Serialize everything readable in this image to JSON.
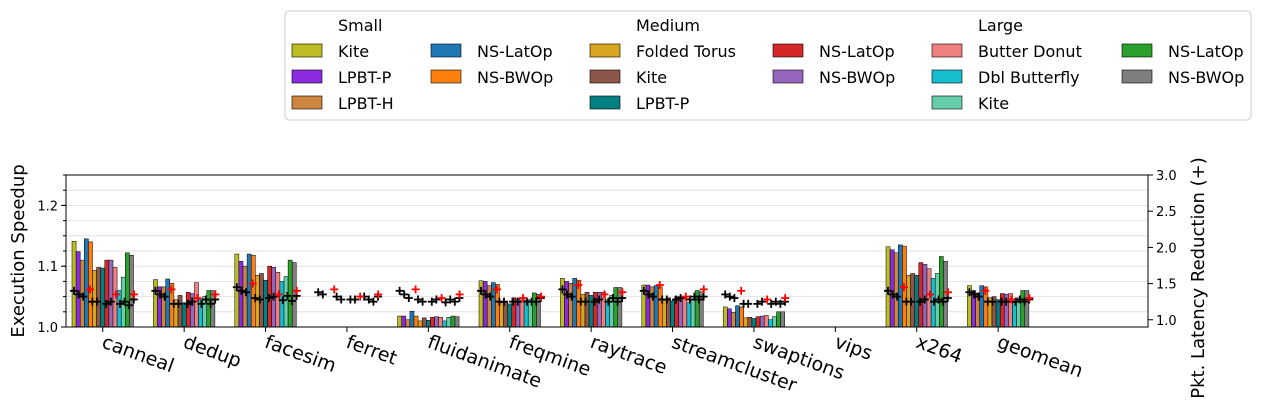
{
  "chart_data": {
    "type": "bar",
    "categories": [
      "canneal",
      "dedup",
      "facesim",
      "ferret",
      "fluidanimate",
      "freqmine",
      "raytrace",
      "streamcluster",
      "swaptions",
      "vips",
      "x264",
      "geomean"
    ],
    "ylabel": "Execution Speedup",
    "y2label": "Pkt. Latency Reduction (+)",
    "ylim": [
      1.0,
      1.25
    ],
    "y_ticks": [
      "1.0",
      "1.1",
      "1.2"
    ],
    "y2lim": [
      0.9,
      3.0
    ],
    "y2_ticks": [
      "1.0",
      "1.5",
      "2.0",
      "2.5",
      "3.0"
    ],
    "grid": true,
    "legend": {
      "placement": "top",
      "groups": [
        {
          "title": "Small",
          "entries": [
            {
              "name": "Kite",
              "color": "#bcbd22"
            },
            {
              "name": "LPBT-P",
              "color": "#8a2be2"
            },
            {
              "name": "LPBT-H",
              "color": "#cd853f"
            },
            {
              "name": "NS-LatOp",
              "color": "#1f77b4"
            },
            {
              "name": "NS-BWOp",
              "color": "#ff7f0e"
            }
          ]
        },
        {
          "title": "Medium",
          "entries": [
            {
              "name": "Folded Torus",
              "color": "#daa520"
            },
            {
              "name": "Kite",
              "color": "#8c564b"
            },
            {
              "name": "LPBT-P",
              "color": "#008080"
            },
            {
              "name": "NS-LatOp",
              "color": "#d62728"
            },
            {
              "name": "NS-BWOp",
              "color": "#9467bd"
            }
          ]
        },
        {
          "title": "Large",
          "entries": [
            {
              "name": "Butter Donut",
              "color": "#f08080"
            },
            {
              "name": "Dbl Butterfly",
              "color": "#17becf"
            },
            {
              "name": "Kite",
              "color": "#66cdaa"
            },
            {
              "name": "NS-LatOp",
              "color": "#2ca02c"
            },
            {
              "name": "NS-BWOp",
              "color": "#7f7f7f"
            }
          ]
        }
      ]
    },
    "series": [
      {
        "name": "Kite",
        "group": "Small",
        "color": "#bcbd22",
        "values": [
          1.141,
          1.078,
          1.12,
          null,
          1.018,
          1.076,
          1.08,
          1.069,
          1.033,
          null,
          1.132,
          1.068
        ]
      },
      {
        "name": "LPBT-P",
        "group": "Small",
        "color": "#8a2be2",
        "values": [
          1.124,
          1.066,
          1.108,
          null,
          1.018,
          1.075,
          1.075,
          1.069,
          1.03,
          null,
          1.127,
          1.06
        ]
      },
      {
        "name": "LPBT-H",
        "group": "Small",
        "color": "#cd853f",
        "values": [
          1.11,
          1.066,
          1.1,
          null,
          1.012,
          1.068,
          1.072,
          1.066,
          1.024,
          null,
          1.122,
          1.056
        ]
      },
      {
        "name": "NS-LatOp",
        "group": "Small",
        "color": "#1f77b4",
        "values": [
          1.145,
          1.079,
          1.12,
          null,
          1.026,
          1.073,
          1.08,
          1.068,
          1.035,
          null,
          1.135,
          1.068
        ]
      },
      {
        "name": "NS-BWOp",
        "group": "Small",
        "color": "#ff7f0e",
        "values": [
          1.14,
          1.072,
          1.118,
          null,
          1.018,
          1.07,
          1.077,
          1.066,
          1.033,
          null,
          1.133,
          1.066
        ]
      },
      {
        "name": "Folded Torus",
        "group": "Medium",
        "color": "#daa520",
        "values": [
          1.093,
          1.045,
          1.085,
          null,
          1.01,
          1.04,
          1.054,
          1.044,
          1.015,
          null,
          1.085,
          1.048
        ]
      },
      {
        "name": "Kite",
        "group": "Medium",
        "color": "#8c564b",
        "values": [
          1.098,
          1.052,
          1.088,
          null,
          1.015,
          1.042,
          1.057,
          1.048,
          1.016,
          null,
          1.088,
          1.05
        ]
      },
      {
        "name": "LPBT-P",
        "group": "Medium",
        "color": "#008080",
        "values": [
          1.097,
          1.04,
          1.077,
          null,
          1.011,
          1.038,
          1.052,
          1.043,
          1.014,
          null,
          1.085,
          1.045
        ]
      },
      {
        "name": "NS-LatOp",
        "group": "Medium",
        "color": "#d62728",
        "values": [
          1.11,
          1.057,
          1.1,
          null,
          1.016,
          1.048,
          1.057,
          1.05,
          1.017,
          null,
          1.106,
          1.055
        ]
      },
      {
        "name": "NS-BWOp",
        "group": "Medium",
        "color": "#9467bd",
        "values": [
          1.11,
          1.055,
          1.098,
          null,
          1.017,
          1.047,
          1.057,
          1.05,
          1.018,
          null,
          1.103,
          1.054
        ]
      },
      {
        "name": "Butter Donut",
        "group": "Large",
        "color": "#f08080",
        "values": [
          1.098,
          1.073,
          1.09,
          null,
          1.016,
          1.047,
          1.057,
          1.048,
          1.019,
          null,
          1.096,
          1.055
        ]
      },
      {
        "name": "Dbl Butterfly",
        "group": "Large",
        "color": "#17becf",
        "values": [
          1.06,
          1.046,
          1.075,
          null,
          1.01,
          1.044,
          1.045,
          1.04,
          1.012,
          null,
          1.08,
          1.04
        ]
      },
      {
        "name": "Kite",
        "group": "Large",
        "color": "#66cdaa",
        "values": [
          1.082,
          1.05,
          1.083,
          null,
          1.016,
          1.045,
          1.052,
          1.045,
          1.017,
          null,
          1.088,
          1.048
        ]
      },
      {
        "name": "NS-LatOp",
        "group": "Large",
        "color": "#2ca02c",
        "values": [
          1.122,
          1.06,
          1.11,
          null,
          1.018,
          1.056,
          1.065,
          1.06,
          1.025,
          null,
          1.116,
          1.06
        ]
      },
      {
        "name": "NS-BWOp",
        "group": "Large",
        "color": "#7f7f7f",
        "values": [
          1.118,
          1.06,
          1.106,
          null,
          1.017,
          1.054,
          1.065,
          1.058,
          1.025,
          null,
          1.108,
          1.06
        ]
      }
    ],
    "latency_markers": {
      "black": [
        [
          1.4,
          1.35,
          1.32,
          null,
          1.25,
          1.25,
          null,
          1.22,
          1.25,
          null,
          1.22,
          1.25,
          1.2,
          1.28
        ],
        [
          1.4,
          1.35,
          1.32,
          null,
          1.22,
          1.22,
          null,
          1.22,
          1.25,
          null,
          1.22,
          1.28,
          1.22,
          1.28
        ],
        [
          1.45,
          1.4,
          1.38,
          null,
          1.3,
          1.28,
          null,
          1.3,
          1.32,
          null,
          1.27,
          1.33,
          1.26,
          1.33
        ],
        [
          1.38,
          1.35,
          null,
          null,
          1.32,
          1.28,
          null,
          1.28,
          1.28,
          null,
          1.32,
          1.28,
          1.25,
          1.32
        ],
        [
          1.4,
          1.35,
          1.3,
          null,
          1.28,
          1.25,
          null,
          1.25,
          1.28,
          null,
          1.24,
          1.28,
          1.25,
          1.3
        ],
        [
          1.4,
          1.35,
          1.32,
          null,
          1.25,
          1.25,
          null,
          1.25,
          1.25,
          null,
          1.25,
          1.25,
          1.25,
          1.3
        ],
        [
          1.42,
          1.35,
          1.32,
          null,
          1.25,
          1.25,
          null,
          1.25,
          1.28,
          null,
          1.25,
          1.3,
          1.25,
          1.3
        ],
        [
          1.4,
          1.35,
          1.32,
          null,
          1.28,
          1.28,
          null,
          1.28,
          1.3,
          null,
          1.28,
          1.32,
          1.28,
          1.32
        ],
        [
          1.35,
          1.32,
          1.3,
          null,
          1.22,
          1.22,
          null,
          1.22,
          1.25,
          null,
          1.22,
          1.25,
          1.22,
          1.25
        ],
        [
          null,
          null,
          null,
          null,
          null,
          null,
          null,
          null,
          null,
          null,
          null,
          null,
          null,
          null
        ],
        [
          1.4,
          1.35,
          1.32,
          null,
          1.25,
          1.25,
          null,
          1.25,
          1.28,
          null,
          1.25,
          1.28,
          1.25,
          1.3
        ],
        [
          1.38,
          1.35,
          1.32,
          null,
          1.25,
          1.25,
          null,
          1.25,
          1.25,
          null,
          1.25,
          1.28,
          1.25,
          1.28
        ]
      ],
      "red": [
        [
          1.42,
          1.35,
          1.35
        ],
        [
          1.42,
          1.3,
          1.35
        ],
        [
          1.5,
          1.35,
          1.4
        ],
        [
          1.42,
          1.32,
          1.35
        ],
        [
          1.42,
          1.3,
          1.35
        ],
        [
          1.42,
          1.3,
          1.32
        ],
        [
          1.48,
          1.35,
          1.38
        ],
        [
          1.48,
          1.32,
          1.42
        ],
        [
          1.4,
          1.28,
          1.3
        ],
        [
          null,
          null,
          null
        ],
        [
          1.45,
          1.35,
          1.38
        ],
        [
          1.4,
          1.28,
          1.3
        ]
      ]
    }
  }
}
